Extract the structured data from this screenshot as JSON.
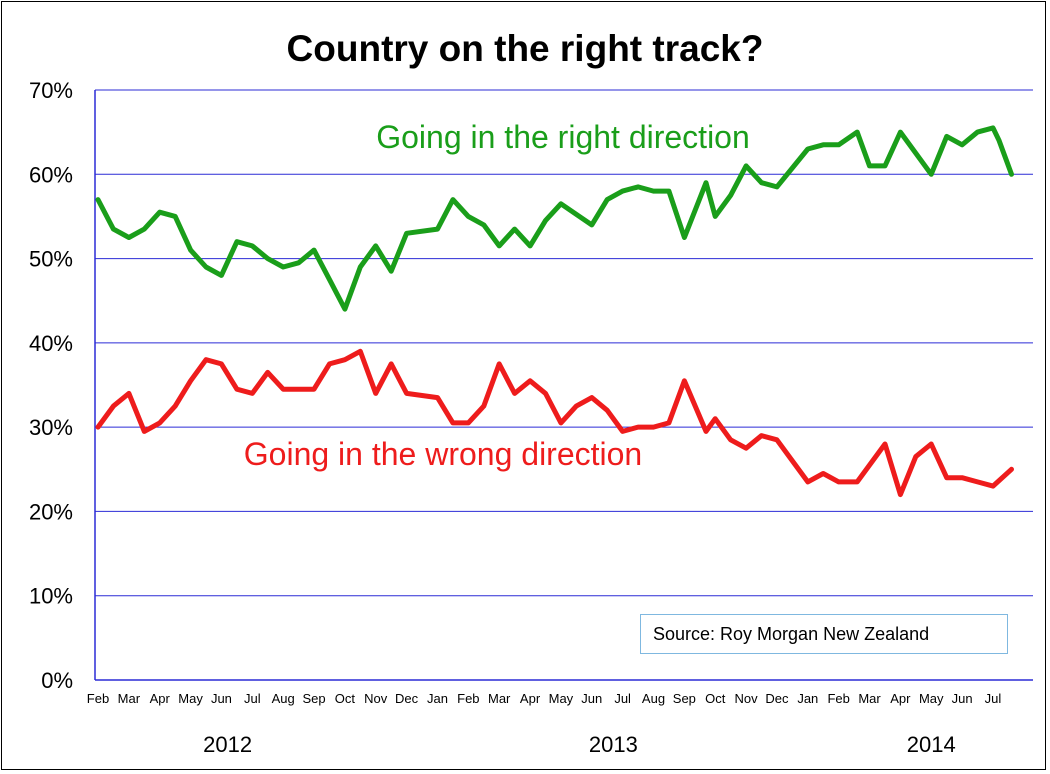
{
  "chart_data": {
    "type": "line",
    "title": "Country on the right track?",
    "ylim": [
      0,
      70
    ],
    "yticks": [
      "0%",
      "10%",
      "20%",
      "30%",
      "40%",
      "50%",
      "60%",
      "70%"
    ],
    "grid": true,
    "x_month_labels": [
      {
        "label": "Feb",
        "x": 0
      },
      {
        "label": "Mar",
        "x": 1
      },
      {
        "label": "Apr",
        "x": 2
      },
      {
        "label": "May",
        "x": 3
      },
      {
        "label": "Jun",
        "x": 4
      },
      {
        "label": "Jul",
        "x": 5
      },
      {
        "label": "Aug",
        "x": 6
      },
      {
        "label": "Sep",
        "x": 7
      },
      {
        "label": "Oct",
        "x": 8
      },
      {
        "label": "Nov",
        "x": 9
      },
      {
        "label": "Dec",
        "x": 10
      },
      {
        "label": "Jan",
        "x": 11
      },
      {
        "label": "Feb",
        "x": 12
      },
      {
        "label": "Mar",
        "x": 13
      },
      {
        "label": "Apr",
        "x": 14
      },
      {
        "label": "May",
        "x": 15
      },
      {
        "label": "Jun",
        "x": 16
      },
      {
        "label": "Jul",
        "x": 17
      },
      {
        "label": "Aug",
        "x": 18
      },
      {
        "label": "Sep",
        "x": 19
      },
      {
        "label": "Oct",
        "x": 20
      },
      {
        "label": "Nov",
        "x": 21
      },
      {
        "label": "Dec",
        "x": 22
      },
      {
        "label": "Jan",
        "x": 23
      },
      {
        "label": "Feb",
        "x": 24
      },
      {
        "label": "Mar",
        "x": 25
      },
      {
        "label": "Apr",
        "x": 26
      },
      {
        "label": "May",
        "x": 27
      },
      {
        "label": "Jun",
        "x": 28
      },
      {
        "label": "Jul",
        "x": 29
      }
    ],
    "year_labels": [
      {
        "label": "2012",
        "x": 4.2
      },
      {
        "label": "2013",
        "x": 16.7
      },
      {
        "label": "2014",
        "x": 27.0
      }
    ],
    "xlim": [
      0,
      30.2
    ],
    "series": [
      {
        "name": "Going in the right direction",
        "color": "#1a9e1a",
        "x": [
          0,
          0.5,
          1,
          1.5,
          2,
          2.5,
          3,
          3.5,
          4,
          4.5,
          5,
          5.5,
          6,
          6.5,
          7,
          7.5,
          8,
          8.5,
          9,
          9.5,
          10,
          11,
          11.5,
          12,
          12.5,
          13,
          13.5,
          14,
          14.5,
          15,
          16,
          16.5,
          17,
          17.5,
          18,
          18.5,
          19,
          19.7,
          20,
          20.5,
          21,
          21.5,
          22,
          23,
          23.5,
          24,
          24.6,
          25,
          25.5,
          26,
          27,
          27.5,
          28,
          28.5,
          29,
          29.2,
          29.6
        ],
        "y": [
          57,
          53.5,
          52.5,
          53.5,
          55.5,
          55,
          51,
          49,
          48,
          52,
          51.5,
          50,
          49,
          49.5,
          51,
          47.5,
          44,
          49,
          51.5,
          48.5,
          53,
          53.5,
          57,
          55,
          54,
          51.5,
          53.5,
          51.5,
          54.5,
          56.5,
          54,
          57,
          58,
          58.5,
          58,
          58,
          52.5,
          59,
          55,
          57.5,
          61,
          59,
          58.5,
          63,
          63.5,
          63.5,
          65,
          61,
          61,
          65,
          60,
          64.5,
          63.5,
          65,
          65.5,
          64,
          60
        ]
      },
      {
        "name": "Going in the wrong direction",
        "color": "#ee1c1c",
        "x": [
          0,
          0.5,
          1,
          1.5,
          2,
          2.5,
          3,
          3.5,
          4,
          4.5,
          5,
          5.5,
          6,
          6.5,
          7,
          7.5,
          8,
          8.5,
          9,
          9.5,
          10,
          11,
          11.5,
          12,
          12.5,
          13,
          13.5,
          14,
          14.5,
          15,
          15.5,
          16,
          16.5,
          17,
          17.5,
          18,
          18.5,
          19,
          19.7,
          20,
          20.5,
          21,
          21.5,
          22,
          23,
          23.5,
          24,
          24.6,
          25,
          25.5,
          26,
          26.5,
          27,
          27.5,
          28,
          28.5,
          29,
          29.6
        ],
        "y": [
          30,
          32.5,
          34,
          29.5,
          30.5,
          32.5,
          35.5,
          38,
          37.5,
          34.5,
          34,
          36.5,
          34.5,
          34.5,
          34.5,
          37.5,
          38,
          39,
          34,
          37.5,
          34,
          33.5,
          30.5,
          30.5,
          32.5,
          37.5,
          34,
          35.5,
          34,
          30.5,
          32.5,
          33.5,
          32,
          29.5,
          30,
          30,
          30.5,
          35.5,
          29.5,
          31,
          28.5,
          27.5,
          29,
          28.5,
          23.5,
          24.5,
          23.5,
          23.5,
          25.5,
          28,
          22,
          26.5,
          28,
          24,
          24,
          23.5,
          23,
          25
        ]
      }
    ],
    "annotations": [
      {
        "text": "Going in the right direction",
        "series": 0
      },
      {
        "text": "Going in the wrong direction",
        "series": 1
      }
    ],
    "source": "Source: Roy Morgan New Zealand"
  }
}
